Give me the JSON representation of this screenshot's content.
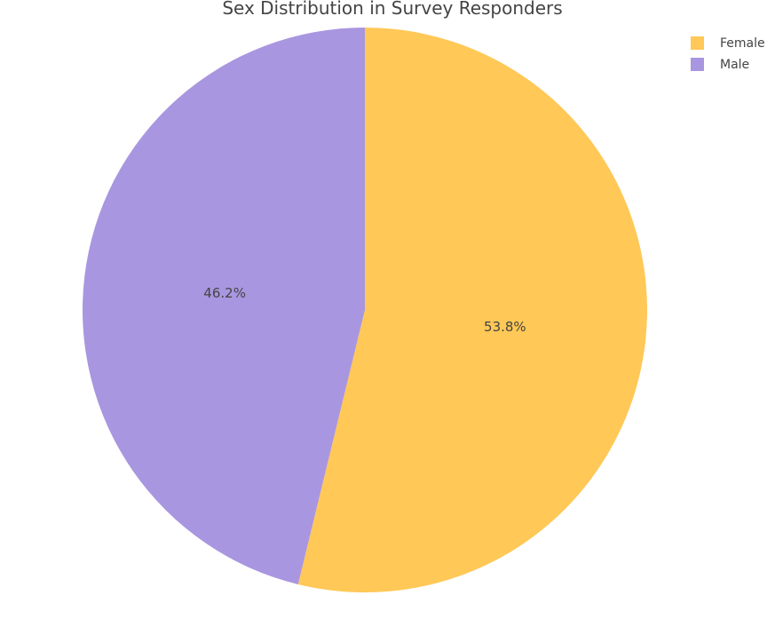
{
  "chart_data": {
    "type": "pie",
    "title": "Sex Distribution in Survey Responders",
    "labels": [
      "Female",
      "Male"
    ],
    "values": [
      53.8,
      46.2
    ],
    "value_labels": [
      "53.8%",
      "46.2%"
    ],
    "colors": [
      "#ffc857",
      "#a996e0"
    ],
    "direction": "clockwise",
    "start_angle_deg": 90,
    "legend": {
      "position": "top-right",
      "items": [
        "Female",
        "Male"
      ]
    }
  }
}
